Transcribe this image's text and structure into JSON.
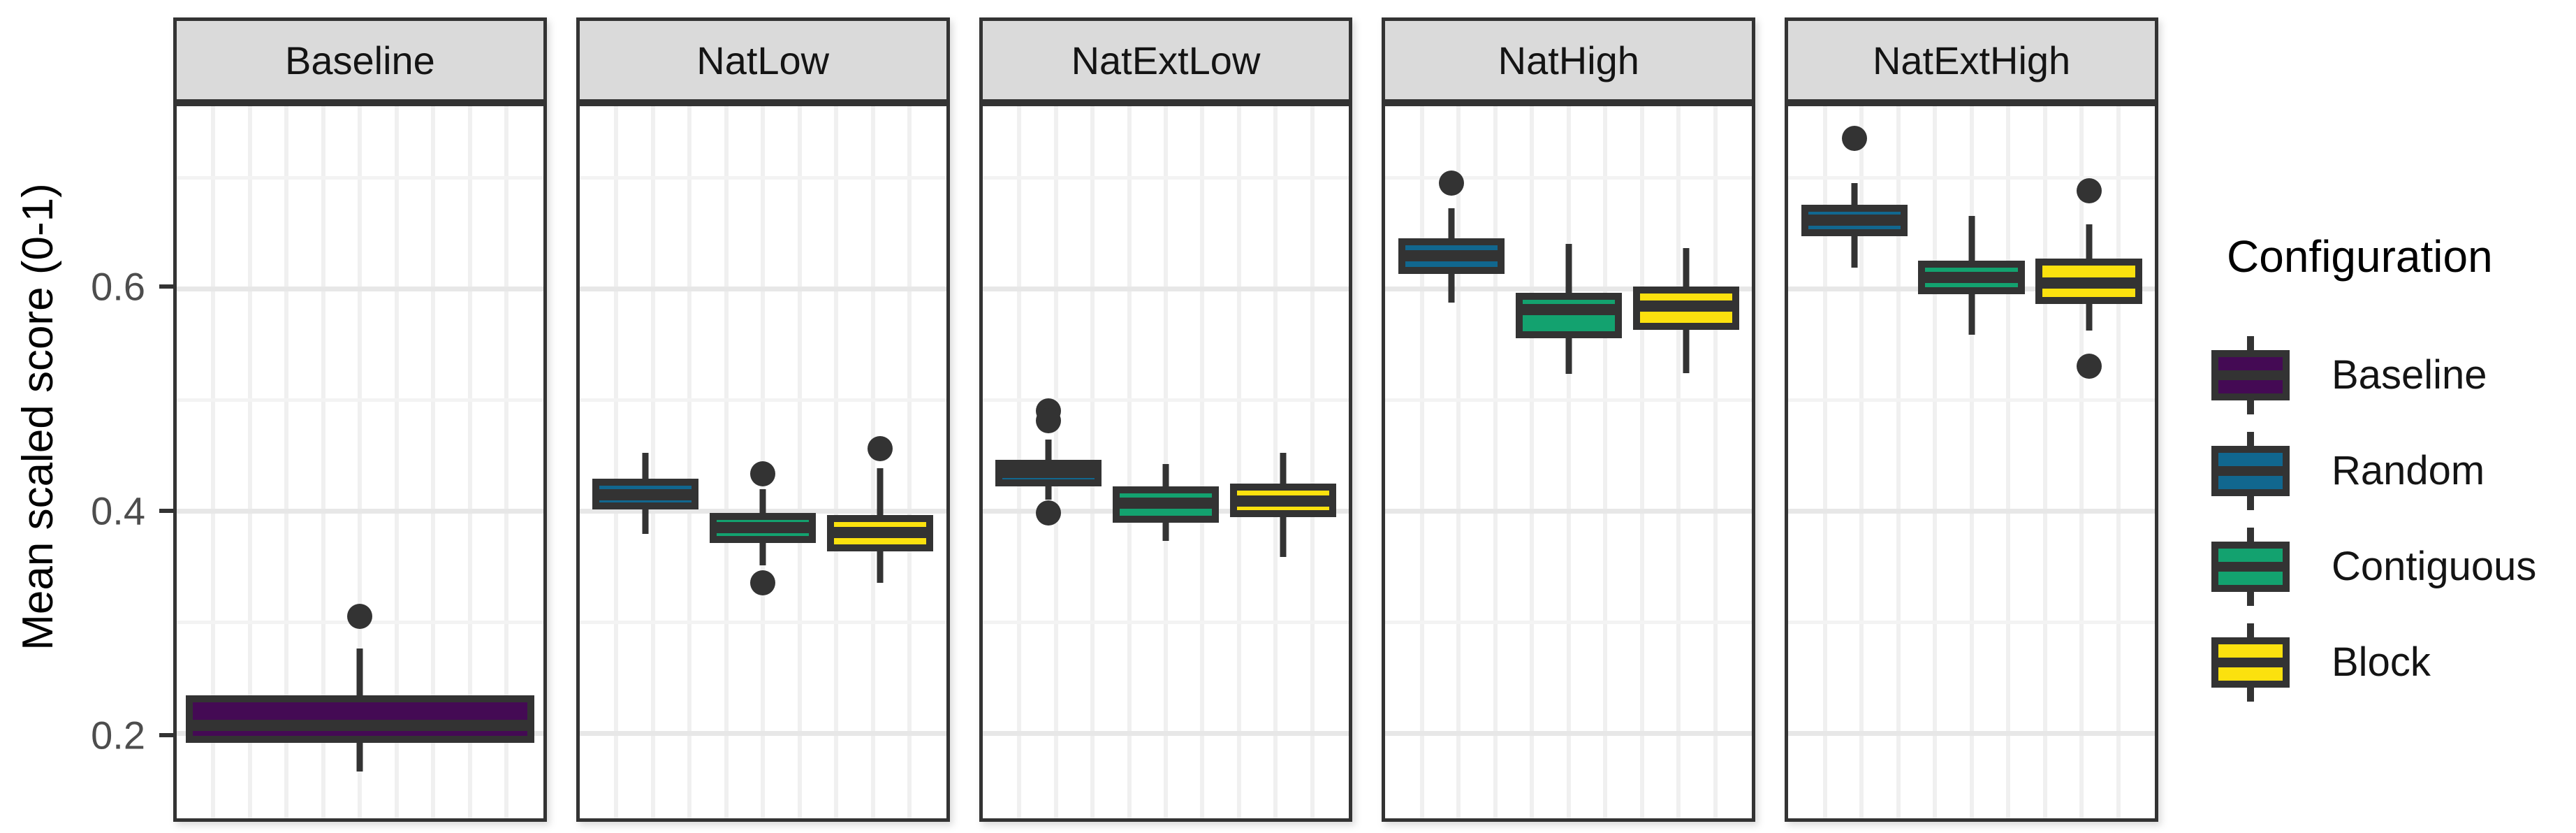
{
  "y_axis": {
    "title": "Mean scaled score (0-1)",
    "tick_labels": [
      "0.6",
      "0.4",
      "0.2"
    ]
  },
  "legend": {
    "title": "Configuration",
    "entries": [
      {
        "label": "Baseline",
        "color": "#440a54"
      },
      {
        "label": "Random",
        "color": "#11678f"
      },
      {
        "label": "Contiguous",
        "color": "#13a26f"
      },
      {
        "label": "Block",
        "color": "#fbe10e"
      }
    ]
  },
  "colors": {
    "stroke": "#333333",
    "strip_fill": "#dadada",
    "grid_major": "#e7e7e7",
    "grid_minor": "#f3f3f3",
    "tick_label": "#4d4d4d"
  },
  "chart_data": {
    "type": "boxplot",
    "ylabel": "Mean scaled score (0-1)",
    "legend_title": "Configuration",
    "legend_position": "right",
    "grid": true,
    "facets": [
      "Baseline",
      "NatLow",
      "NatExtLow",
      "NatHigh",
      "NatExtHigh"
    ],
    "yticks": [
      0.2,
      0.4,
      0.6
    ],
    "minor_gridlines": [
      0.3,
      0.5,
      0.7
    ],
    "ylim": [
      0.123,
      0.764
    ],
    "groups": {
      "Baseline": "#440a54",
      "Random": "#11678f",
      "Contiguous": "#13a26f",
      "Block": "#fbe10e"
    },
    "boxes": [
      {
        "facet": "Baseline",
        "group": "Baseline",
        "whisker_low": 0.165,
        "q1": 0.191,
        "median": 0.204,
        "q3": 0.234,
        "whisker_high": 0.276,
        "outliers": [
          0.305
        ]
      },
      {
        "facet": "NatLow",
        "group": "Random",
        "whisker_low": 0.379,
        "q1": 0.401,
        "median": 0.414,
        "q3": 0.429,
        "whisker_high": 0.452,
        "outliers": []
      },
      {
        "facet": "NatLow",
        "group": "Contiguous",
        "whisker_low": 0.351,
        "q1": 0.371,
        "median": 0.385,
        "q3": 0.398,
        "whisker_high": 0.419,
        "outliers": [
          0.433,
          0.335
        ]
      },
      {
        "facet": "NatLow",
        "group": "Block",
        "whisker_low": 0.335,
        "q1": 0.363,
        "median": 0.381,
        "q3": 0.396,
        "whisker_high": 0.438,
        "outliers": [
          0.456
        ]
      },
      {
        "facet": "NatExtLow",
        "group": "Random",
        "whisker_low": 0.41,
        "q1": 0.422,
        "median": 0.435,
        "q3": 0.446,
        "whisker_high": 0.464,
        "outliers": [
          0.49,
          0.481,
          0.398
        ]
      },
      {
        "facet": "NatExtLow",
        "group": "Contiguous",
        "whisker_low": 0.373,
        "q1": 0.389,
        "median": 0.407,
        "q3": 0.422,
        "whisker_high": 0.442,
        "outliers": []
      },
      {
        "facet": "NatExtLow",
        "group": "Block",
        "whisker_low": 0.358,
        "q1": 0.394,
        "median": 0.408,
        "q3": 0.424,
        "whisker_high": 0.452,
        "outliers": []
      },
      {
        "facet": "NatHigh",
        "group": "Random",
        "whisker_low": 0.587,
        "q1": 0.613,
        "median": 0.63,
        "q3": 0.645,
        "whisker_high": 0.672,
        "outliers": [
          0.695
        ]
      },
      {
        "facet": "NatHigh",
        "group": "Contiguous",
        "whisker_low": 0.523,
        "q1": 0.555,
        "median": 0.583,
        "q3": 0.596,
        "whisker_high": 0.64,
        "outliers": []
      },
      {
        "facet": "NatHigh",
        "group": "Block",
        "whisker_low": 0.524,
        "q1": 0.563,
        "median": 0.585,
        "q3": 0.602,
        "whisker_high": 0.636,
        "outliers": []
      },
      {
        "facet": "NatExtHigh",
        "group": "Random",
        "whisker_low": 0.619,
        "q1": 0.647,
        "median": 0.662,
        "q3": 0.675,
        "whisker_high": 0.695,
        "outliers": [
          0.735
        ]
      },
      {
        "facet": "NatExtHigh",
        "group": "Contiguous",
        "whisker_low": 0.558,
        "q1": 0.595,
        "median": 0.61,
        "q3": 0.625,
        "whisker_high": 0.665,
        "outliers": []
      },
      {
        "facet": "NatExtHigh",
        "group": "Block",
        "whisker_low": 0.562,
        "q1": 0.586,
        "median": 0.604,
        "q3": 0.627,
        "whisker_high": 0.658,
        "outliers": [
          0.688,
          0.53
        ]
      }
    ]
  }
}
